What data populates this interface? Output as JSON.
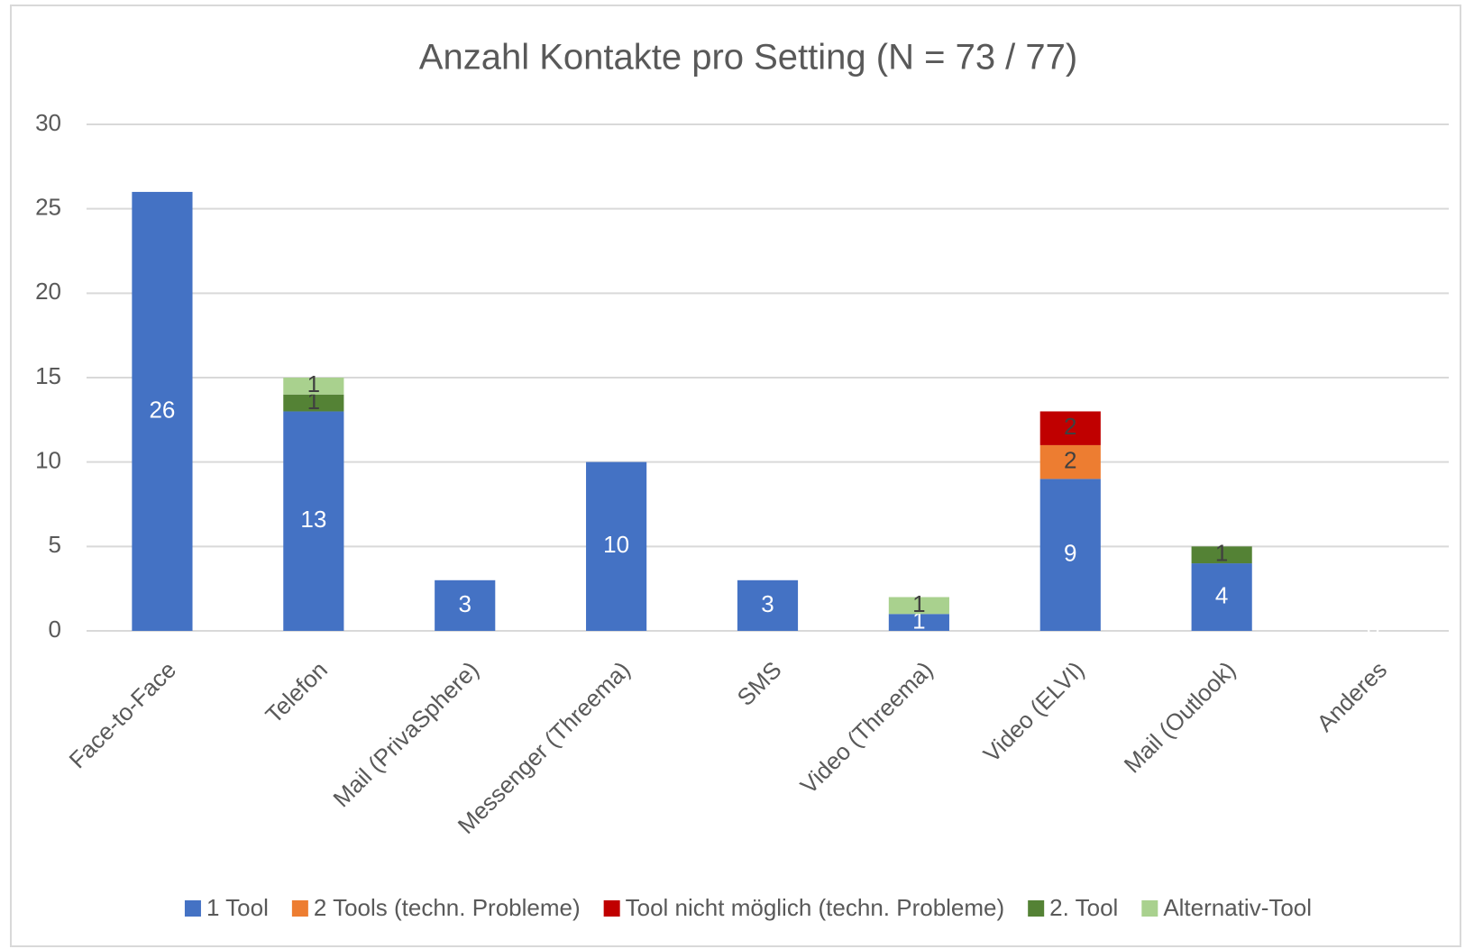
{
  "chart_data": {
    "type": "stacked_bar",
    "title": "Anzahl Kontakte pro Setting (N = 73 / 77)",
    "categories": [
      "Face-to-Face",
      "Telefon",
      "Mail (PrivaSphere)",
      "Messenger (Threema)",
      "SMS",
      "Video (Threema)",
      "Video (ELVI)",
      "Mail (Outlook)",
      "Anderes"
    ],
    "series": [
      {
        "name": "1 Tool",
        "color": "#4472c4",
        "values": [
          26,
          13,
          3,
          10,
          3,
          1,
          9,
          4,
          0
        ]
      },
      {
        "name": "2 Tools (techn. Probleme)",
        "color": "#ed7d31",
        "values": [
          null,
          null,
          null,
          null,
          null,
          null,
          2,
          null,
          null
        ]
      },
      {
        "name": "Tool nicht möglich (techn. Probleme)",
        "color": "#c00000",
        "values": [
          null,
          null,
          null,
          null,
          null,
          null,
          2,
          null,
          null
        ]
      },
      {
        "name": "2. Tool",
        "color": "#548235",
        "values": [
          null,
          1,
          null,
          null,
          null,
          null,
          null,
          1,
          null
        ]
      },
      {
        "name": "Alternativ-Tool",
        "color": "#a9d18e",
        "values": [
          null,
          1,
          null,
          null,
          null,
          1,
          null,
          null,
          null
        ]
      }
    ],
    "ylim": [
      0,
      30
    ],
    "yticks": [
      0,
      5,
      10,
      15,
      20,
      25,
      30
    ],
    "grid": true,
    "legend": "bottom"
  }
}
